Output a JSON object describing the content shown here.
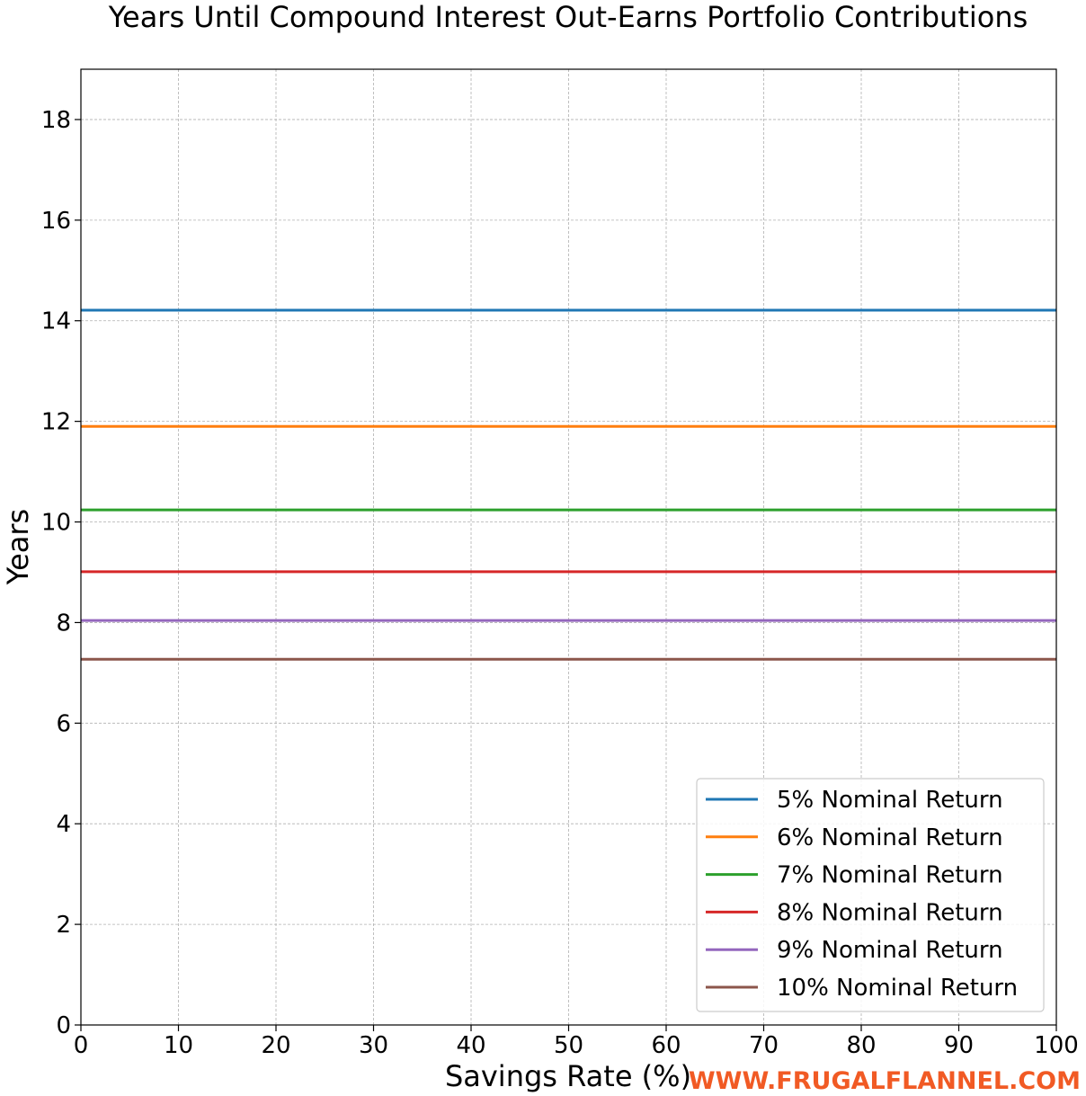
{
  "chart_data": {
    "type": "line",
    "title": "Years Until Compound Interest Out-Earns Portfolio Contributions",
    "xlabel": "Savings Rate (%)",
    "ylabel": "Years",
    "xlim": [
      0,
      100
    ],
    "ylim": [
      0,
      19
    ],
    "xticks": [
      0,
      10,
      20,
      30,
      40,
      50,
      60,
      70,
      80,
      90,
      100
    ],
    "yticks": [
      0,
      2,
      4,
      6,
      8,
      10,
      12,
      14,
      16,
      18
    ],
    "grid": true,
    "legend_position": "lower-right",
    "series": [
      {
        "name": "5% Nominal Return",
        "color": "#1f77b4",
        "x": [
          0,
          100
        ],
        "y": [
          14.21,
          14.21
        ]
      },
      {
        "name": "6% Nominal Return",
        "color": "#ff7f0e",
        "x": [
          0,
          100
        ],
        "y": [
          11.9,
          11.9
        ]
      },
      {
        "name": "7% Nominal Return",
        "color": "#2ca02c",
        "x": [
          0,
          100
        ],
        "y": [
          10.24,
          10.24
        ]
      },
      {
        "name": "8% Nominal Return",
        "color": "#d62728",
        "x": [
          0,
          100
        ],
        "y": [
          9.01,
          9.01
        ]
      },
      {
        "name": "9% Nominal Return",
        "color": "#9467bd",
        "x": [
          0,
          100
        ],
        "y": [
          8.04,
          8.04
        ]
      },
      {
        "name": "10% Nominal Return",
        "color": "#8c564b",
        "x": [
          0,
          100
        ],
        "y": [
          7.27,
          7.27
        ]
      }
    ]
  },
  "watermark": {
    "text": "WWW.FRUGALFLANNEL.COM",
    "color": "#f15a24"
  }
}
